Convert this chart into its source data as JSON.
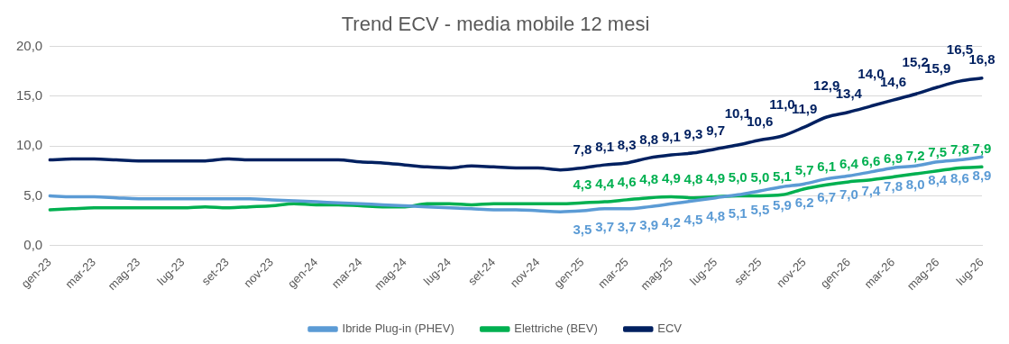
{
  "chart_data": {
    "type": "line",
    "title": "Trend ECV - media mobile 12 mesi",
    "categories": [
      "gen-23",
      null,
      "mar-23",
      null,
      "mag-23",
      null,
      "lug-23",
      null,
      "set-23",
      null,
      "nov-23",
      null,
      "gen-24",
      null,
      "mar-24",
      null,
      "mag-24",
      null,
      "lug-24",
      null,
      "set-24",
      null,
      "nov-24",
      null,
      "gen-25",
      null,
      "mar-25",
      null,
      "mag-25",
      null,
      "lug-25",
      null,
      "set-25",
      null,
      "nov-25",
      null,
      "gen-26",
      null,
      "mar-26",
      null,
      "mag-26",
      null,
      "lug-26"
    ],
    "series": [
      {
        "name": "Ibride Plug-in (PHEV)",
        "color": "#5b9bd5",
        "values": [
          5.0,
          4.9,
          4.9,
          4.8,
          4.7,
          4.7,
          4.7,
          4.7,
          4.7,
          4.7,
          4.6,
          4.5,
          4.4,
          4.3,
          4.2,
          4.1,
          4.0,
          3.9,
          3.8,
          3.7,
          3.6,
          3.6,
          3.5,
          3.4,
          3.5,
          3.7,
          3.7,
          3.9,
          4.2,
          4.5,
          4.8,
          5.1,
          5.5,
          5.9,
          6.2,
          6.7,
          7.0,
          7.4,
          7.8,
          8.0,
          8.4,
          8.6,
          8.9
        ],
        "value_labels": [
          null,
          null,
          null,
          null,
          null,
          null,
          null,
          null,
          null,
          null,
          null,
          null,
          null,
          null,
          null,
          null,
          null,
          null,
          null,
          null,
          null,
          null,
          null,
          null,
          "3,5",
          "3,7",
          "3,7",
          "3,9",
          "4,2",
          "4,5",
          "4,8",
          "5,1",
          "5,5",
          "5,9",
          "6,2",
          "6,7",
          "7,0",
          "7,4",
          "7,8",
          "8,0",
          "8,4",
          "8,6",
          "8,9"
        ]
      },
      {
        "name": "Elettriche (BEV)",
        "color": "#00b050",
        "values": [
          3.6,
          3.7,
          3.8,
          3.8,
          3.8,
          3.8,
          3.8,
          3.9,
          3.8,
          3.9,
          4.0,
          4.2,
          4.1,
          4.1,
          4.0,
          3.9,
          3.9,
          4.2,
          4.2,
          4.1,
          4.2,
          4.2,
          4.2,
          4.2,
          4.3,
          4.4,
          4.6,
          4.8,
          4.9,
          4.8,
          4.9,
          5.0,
          5.0,
          5.1,
          5.7,
          6.1,
          6.4,
          6.6,
          6.9,
          7.2,
          7.5,
          7.8,
          7.9
        ],
        "value_labels": [
          null,
          null,
          null,
          null,
          null,
          null,
          null,
          null,
          null,
          null,
          null,
          null,
          null,
          null,
          null,
          null,
          null,
          null,
          null,
          null,
          null,
          null,
          null,
          null,
          "4,3",
          "4,4",
          "4,6",
          "4,8",
          "4,9",
          "4,8",
          "4,9",
          "5,0",
          "5,0",
          "5,1",
          "5,7",
          "6,1",
          "6,4",
          "6,6",
          "6,9",
          "7,2",
          "7,5",
          "7,8",
          "7,9"
        ]
      },
      {
        "name": "ECV",
        "color": "#002060",
        "values": [
          8.6,
          8.7,
          8.7,
          8.6,
          8.5,
          8.5,
          8.5,
          8.5,
          8.7,
          8.6,
          8.6,
          8.6,
          8.6,
          8.6,
          8.4,
          8.3,
          8.1,
          7.9,
          7.8,
          8.0,
          7.9,
          7.8,
          7.8,
          7.6,
          7.8,
          8.1,
          8.3,
          8.8,
          9.1,
          9.3,
          9.7,
          10.1,
          10.6,
          11.0,
          11.9,
          12.9,
          13.4,
          14.0,
          14.6,
          15.2,
          15.9,
          16.5,
          16.8
        ],
        "value_labels": [
          null,
          null,
          null,
          null,
          null,
          null,
          null,
          null,
          null,
          null,
          null,
          null,
          null,
          null,
          null,
          null,
          null,
          null,
          null,
          null,
          null,
          null,
          null,
          null,
          "7,8",
          "8,1",
          "8,3",
          "8,8",
          "9,1",
          "9,3",
          "9,7",
          "10,1",
          "10,6",
          "11,0",
          "11,9",
          "12,9",
          "13,4",
          "14,0",
          "14,6",
          "15,2",
          "15,9",
          "16,5",
          "16,8"
        ]
      }
    ],
    "ylim": [
      0,
      20
    ],
    "yticks": [
      {
        "value": 0,
        "label": "0,0"
      },
      {
        "value": 5,
        "label": "5,0"
      },
      {
        "value": 10,
        "label": "10,0"
      },
      {
        "value": 15,
        "label": "15,0"
      },
      {
        "value": 20,
        "label": "20,0"
      }
    ],
    "grid": "y",
    "legend": "bottom",
    "marker": "none",
    "line_style": "solid"
  }
}
